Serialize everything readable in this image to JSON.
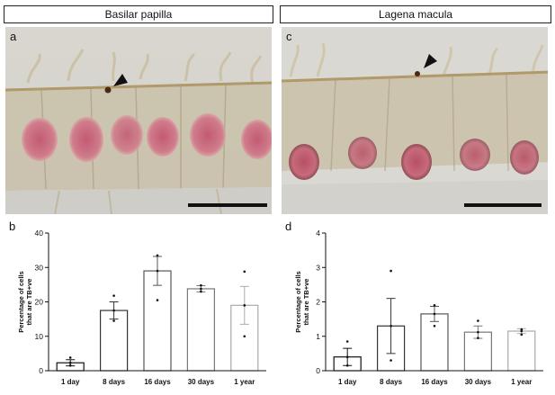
{
  "headers": {
    "left": "Basilar papilla",
    "right": "Lagena macula"
  },
  "panels": {
    "a": "a",
    "b": "b",
    "c": "c",
    "d": "d"
  },
  "micrographs": [
    {
      "panel": "a",
      "tissue": "Basilar papilla",
      "annotation": "arrowhead-marker",
      "has_scale_bar": true
    },
    {
      "panel": "c",
      "tissue": "Lagena macula",
      "annotation": "arrowhead-marker",
      "has_scale_bar": true
    }
  ],
  "colors": {
    "bar_1day": "#111111",
    "bar_8days": "#333333",
    "bar_16days": "#555555",
    "bar_30days": "#777777",
    "bar_1year": "#aaaaaa",
    "stain": "#c96c80",
    "tissue": "#c8bfa6"
  },
  "chart_data": [
    {
      "panel": "b",
      "type": "bar",
      "ylabel_lines": [
        "Percentage of cells",
        "that are TB+ve"
      ],
      "categories": [
        "1 day",
        "8 days",
        "16 days",
        "30 days",
        "1 year"
      ],
      "values": [
        2.3,
        17.5,
        29.0,
        23.8,
        19.0
      ],
      "error": [
        0.9,
        2.5,
        4.2,
        0.9,
        5.5
      ],
      "points": [
        [
          1.5,
          2.3,
          3.8
        ],
        [
          14.5,
          17.5,
          21.8
        ],
        [
          20.5,
          29.0,
          33.5
        ],
        [
          23.0,
          23.8,
          24.8
        ],
        [
          10.0,
          19.0,
          28.8
        ]
      ],
      "ylim": [
        0,
        40
      ],
      "yticks": [
        0,
        10,
        20,
        30,
        40
      ]
    },
    {
      "panel": "d",
      "type": "bar",
      "ylabel_lines": [
        "Percentage of cells",
        "that are TB+ve"
      ],
      "categories": [
        "1 day",
        "8 days",
        "16 days",
        "30 days",
        "1 year"
      ],
      "values": [
        0.4,
        1.3,
        1.65,
        1.12,
        1.15
      ],
      "error": [
        0.25,
        0.8,
        0.22,
        0.18,
        0.07
      ],
      "points": [
        [
          0.15,
          0.4,
          0.85
        ],
        [
          0.3,
          1.3,
          2.9
        ],
        [
          1.3,
          1.65,
          1.9
        ],
        [
          0.95,
          1.12,
          1.45
        ],
        [
          1.05,
          1.15,
          1.2
        ]
      ],
      "ylim": [
        0,
        4
      ],
      "yticks": [
        0,
        1,
        2,
        3,
        4
      ]
    }
  ]
}
